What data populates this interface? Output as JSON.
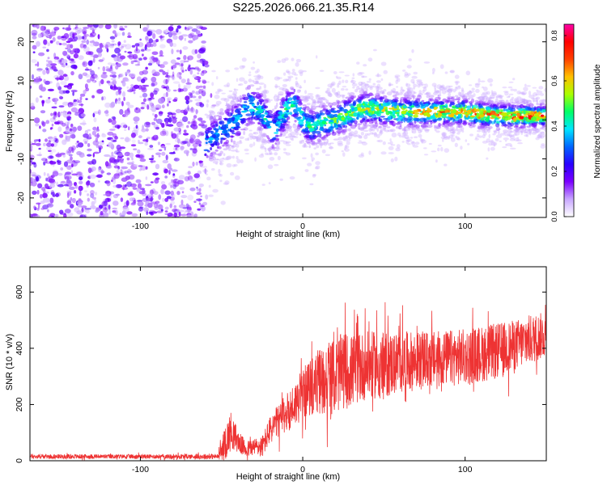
{
  "title": "S225.2026.066.21.35.R14",
  "colors": {
    "snr_line": "#ee3333",
    "colormap": [
      "#ffffff",
      "#c8a6ff",
      "#7b00ff",
      "#2800ff",
      "#0066ff",
      "#00e6ff",
      "#00ff66",
      "#aaff00",
      "#ffc000",
      "#ff4000",
      "#ff0000",
      "#ff00aa"
    ]
  },
  "chart_data": [
    {
      "type": "heatmap",
      "xlabel": "Height of straight line (km)",
      "ylabel": "Frequency (Hz)",
      "xlim": [
        -168,
        150
      ],
      "ylim": [
        -25,
        24.5
      ],
      "xticks": [
        -100,
        0,
        100
      ],
      "yticks": [
        -20,
        -10,
        0,
        10,
        20
      ],
      "noise_region_x": [
        -168,
        -60
      ],
      "signal_ridge": {
        "x": [
          -60,
          -50,
          -40,
          -33,
          -25,
          -18,
          -10,
          -5,
          0,
          5,
          10,
          20,
          30,
          40,
          60,
          80,
          100,
          120,
          150
        ],
        "frequency_hz": [
          -6,
          -3,
          0,
          4,
          2,
          -3,
          3,
          4,
          0,
          -2,
          -1,
          0,
          2,
          3,
          2,
          2,
          2,
          1,
          1
        ]
      },
      "colorbar": {
        "label": "Normalized spectral amplitude",
        "range": [
          0,
          0.85
        ],
        "ticks": [
          0,
          0.2,
          0.4,
          0.6,
          0.8
        ],
        "tick_labels": [
          "0.0",
          "0.2",
          "0.4",
          "0.6",
          "0.8"
        ]
      }
    },
    {
      "type": "line",
      "xlabel": "Height of straight line (km)",
      "ylabel": "SNR (10 * v/v)",
      "xlim": [
        -168,
        150
      ],
      "ylim": [
        0,
        690
      ],
      "xticks": [
        -100,
        0,
        100
      ],
      "yticks": [
        0,
        200,
        400,
        600
      ],
      "series": [
        {
          "x": [
            -168,
            -120,
            -80,
            -52,
            -48,
            -44,
            -40,
            -35,
            -30,
            -25,
            -20,
            -15,
            -10,
            -5,
            0,
            5,
            10,
            15,
            20,
            25,
            30,
            40,
            50,
            60,
            80,
            100,
            110,
            120,
            130,
            140,
            150
          ],
          "mean": [
            15,
            15,
            15,
            15,
            60,
            110,
            70,
            40,
            50,
            50,
            110,
            140,
            170,
            200,
            240,
            260,
            280,
            290,
            300,
            320,
            320,
            340,
            340,
            350,
            360,
            370,
            380,
            390,
            410,
            430,
            450
          ],
          "spread": [
            8,
            8,
            8,
            10,
            60,
            70,
            40,
            30,
            30,
            40,
            50,
            60,
            70,
            80,
            90,
            100,
            120,
            130,
            130,
            140,
            130,
            120,
            120,
            110,
            100,
            100,
            100,
            100,
            90,
            90,
            80
          ]
        }
      ]
    }
  ]
}
